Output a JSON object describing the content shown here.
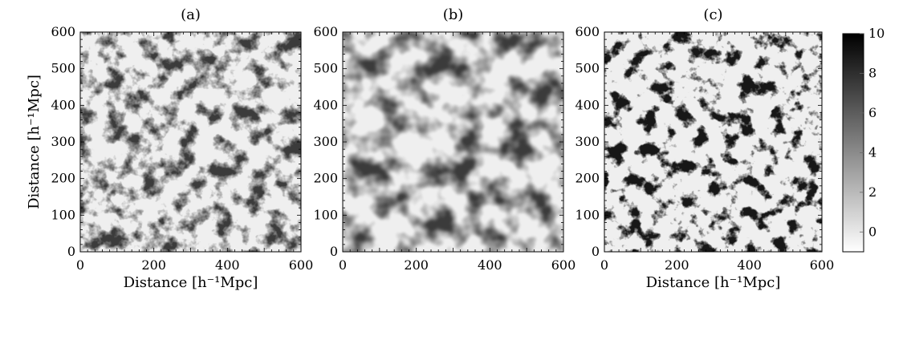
{
  "figure": {
    "panels": [
      {
        "label": "(a)",
        "texture": "filaments-sharp",
        "xlabel": "Distance [h⁻¹Mpc]",
        "ylabel": "Distance [h⁻¹Mpc]"
      },
      {
        "label": "(b)",
        "texture": "filaments-smoothed",
        "xlabel": "",
        "ylabel": ""
      },
      {
        "label": "(c)",
        "texture": "residual-sparse",
        "xlabel": "Distance [h⁻¹Mpc]",
        "ylabel": ""
      }
    ],
    "axis": {
      "range": [
        0,
        600
      ],
      "ticks": [
        "0",
        "100",
        "200",
        "300",
        "400",
        "500",
        "600"
      ],
      "xticks": [
        "0",
        "200",
        "400",
        "600"
      ]
    },
    "colorbar": {
      "range": [
        -1,
        10
      ],
      "ticks": [
        "0",
        "2",
        "4",
        "6",
        "8",
        "10"
      ],
      "colormap": [
        "#ffffff",
        "#000000"
      ]
    }
  }
}
